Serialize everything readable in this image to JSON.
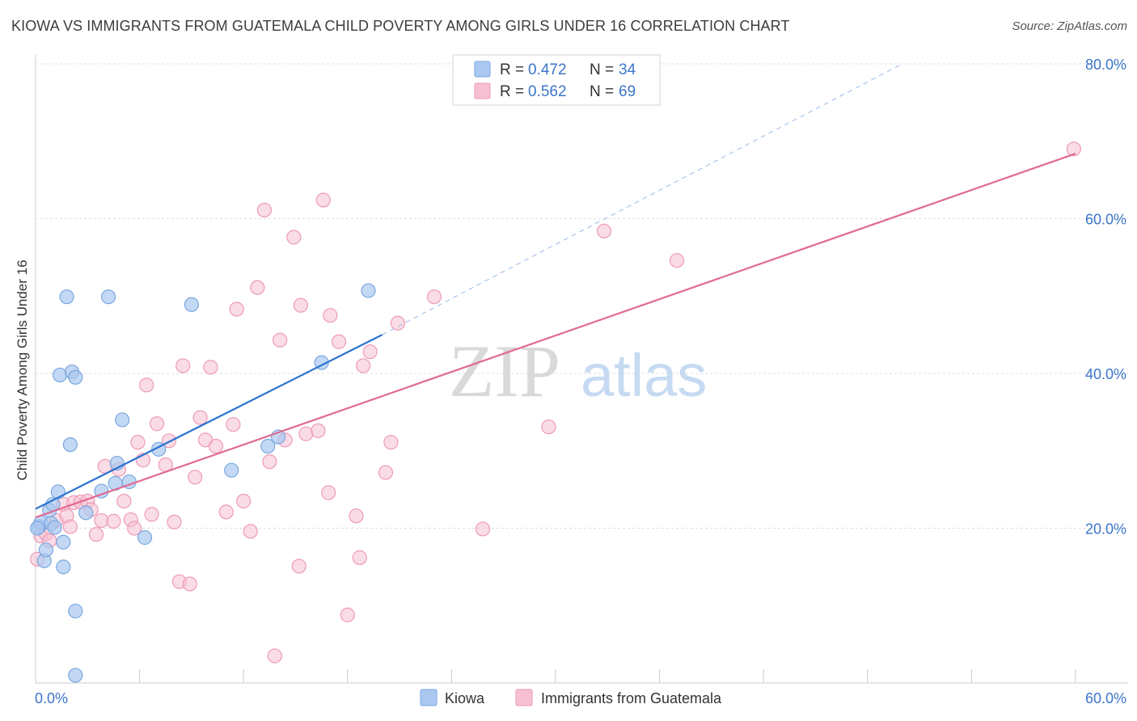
{
  "title": "KIOWA VS IMMIGRANTS FROM GUATEMALA CHILD POVERTY AMONG GIRLS UNDER 16 CORRELATION CHART",
  "source": "Source: ZipAtlas.com",
  "watermark": {
    "left": "ZIP",
    "right": "atlas"
  },
  "legend_top": [
    {
      "r_label": "R = ",
      "r_value": "0.472",
      "n_label": "N = ",
      "n_value": "34"
    },
    {
      "r_label": "R = ",
      "r_value": "0.562",
      "n_label": "N = ",
      "n_value": "69"
    }
  ],
  "colors": {
    "kiowa_fill": "#aac8f0",
    "kiowa_stroke": "#7aa8e0",
    "kiowa_line": "#2a72d0",
    "guat_fill": "#f6c0d2",
    "guat_stroke": "#ee9ab6",
    "guat_line": "#e06a92",
    "value_text": "#3b75c8",
    "grid": "#dddddd"
  },
  "chart_data": {
    "type": "scatter",
    "xlabel": "",
    "ylabel": "Child Poverty Among Girls Under 16",
    "xlim": [
      0,
      60
    ],
    "ylim": [
      0,
      80
    ],
    "x_tick_labels": [
      "0.0%",
      "60.0%"
    ],
    "y_ticks": [
      20,
      40,
      60,
      80
    ],
    "y_tick_labels": [
      "20.0%",
      "40.0%",
      "60.0%",
      "80.0%"
    ],
    "grid": true,
    "legend": "bottom-center",
    "series": [
      {
        "name": "Kiowa",
        "r": 0.472,
        "n": 34,
        "trend": {
          "x0": 0,
          "y0": 22.5,
          "x1": 20,
          "y1": 45,
          "dashed_to_x": 50,
          "dashed_to_y": 80
        },
        "points": [
          [
            0.2,
            20.2
          ],
          [
            0.3,
            20.7
          ],
          [
            0.5,
            15.8
          ],
          [
            0.6,
            17.2
          ],
          [
            0.8,
            22.3
          ],
          [
            0.9,
            20.6
          ],
          [
            1.0,
            23.1
          ],
          [
            1.1,
            20.1
          ],
          [
            1.3,
            24.7
          ],
          [
            1.4,
            39.8
          ],
          [
            1.6,
            18.2
          ],
          [
            1.6,
            15.0
          ],
          [
            1.8,
            49.9
          ],
          [
            2.0,
            30.8
          ],
          [
            2.1,
            40.2
          ],
          [
            2.3,
            39.5
          ],
          [
            2.3,
            9.3
          ],
          [
            2.3,
            1.0
          ],
          [
            2.9,
            22.0
          ],
          [
            3.8,
            24.8
          ],
          [
            4.2,
            49.9
          ],
          [
            4.6,
            25.8
          ],
          [
            4.7,
            28.4
          ],
          [
            5.0,
            34.0
          ],
          [
            5.4,
            26.0
          ],
          [
            6.3,
            18.8
          ],
          [
            7.1,
            30.2
          ],
          [
            9.0,
            48.9
          ],
          [
            11.3,
            27.5
          ],
          [
            13.4,
            30.6
          ],
          [
            14.0,
            31.8
          ],
          [
            16.5,
            41.4
          ],
          [
            19.2,
            50.7
          ],
          [
            0.1,
            20.0
          ]
        ]
      },
      {
        "name": "Immigrants from Guatemala",
        "r": 0.562,
        "n": 69,
        "trend": {
          "x0": 0,
          "y0": 21.4,
          "x1": 60,
          "y1": 68.4
        },
        "points": [
          [
            0.1,
            16.0
          ],
          [
            0.3,
            19.0
          ],
          [
            0.6,
            19.3
          ],
          [
            0.8,
            18.4
          ],
          [
            1.2,
            21.0
          ],
          [
            1.6,
            23.1
          ],
          [
            1.8,
            21.6
          ],
          [
            2.0,
            20.2
          ],
          [
            2.2,
            23.3
          ],
          [
            2.6,
            23.4
          ],
          [
            3.0,
            23.5
          ],
          [
            3.2,
            22.4
          ],
          [
            3.5,
            19.2
          ],
          [
            3.8,
            21.0
          ],
          [
            4.0,
            28.0
          ],
          [
            4.5,
            20.9
          ],
          [
            4.8,
            27.6
          ],
          [
            5.1,
            23.5
          ],
          [
            5.5,
            21.1
          ],
          [
            5.7,
            20.0
          ],
          [
            5.9,
            31.1
          ],
          [
            6.2,
            28.8
          ],
          [
            6.4,
            38.5
          ],
          [
            6.7,
            21.8
          ],
          [
            7.0,
            33.5
          ],
          [
            7.5,
            28.2
          ],
          [
            7.7,
            31.3
          ],
          [
            8.0,
            20.8
          ],
          [
            8.3,
            13.1
          ],
          [
            8.5,
            41.0
          ],
          [
            8.9,
            12.8
          ],
          [
            9.2,
            26.6
          ],
          [
            9.5,
            34.3
          ],
          [
            9.8,
            31.4
          ],
          [
            10.1,
            40.8
          ],
          [
            10.4,
            30.6
          ],
          [
            11.0,
            22.1
          ],
          [
            11.4,
            33.4
          ],
          [
            11.6,
            48.3
          ],
          [
            12.0,
            23.5
          ],
          [
            12.4,
            19.6
          ],
          [
            12.8,
            51.1
          ],
          [
            13.2,
            61.1
          ],
          [
            13.5,
            28.6
          ],
          [
            13.8,
            3.5
          ],
          [
            14.1,
            44.3
          ],
          [
            14.4,
            31.4
          ],
          [
            14.9,
            57.6
          ],
          [
            15.2,
            15.1
          ],
          [
            15.3,
            48.8
          ],
          [
            15.6,
            32.2
          ],
          [
            16.3,
            32.6
          ],
          [
            16.6,
            62.4
          ],
          [
            16.9,
            24.6
          ],
          [
            17.0,
            47.5
          ],
          [
            17.5,
            44.1
          ],
          [
            18.0,
            8.8
          ],
          [
            18.5,
            21.6
          ],
          [
            18.7,
            16.2
          ],
          [
            18.9,
            41.0
          ],
          [
            19.3,
            42.8
          ],
          [
            20.2,
            27.2
          ],
          [
            20.5,
            31.1
          ],
          [
            20.9,
            46.5
          ],
          [
            23.0,
            49.9
          ],
          [
            25.8,
            19.9
          ],
          [
            29.6,
            33.1
          ],
          [
            32.8,
            58.4
          ],
          [
            37.0,
            54.6
          ],
          [
            59.9,
            69.0
          ]
        ]
      }
    ]
  }
}
